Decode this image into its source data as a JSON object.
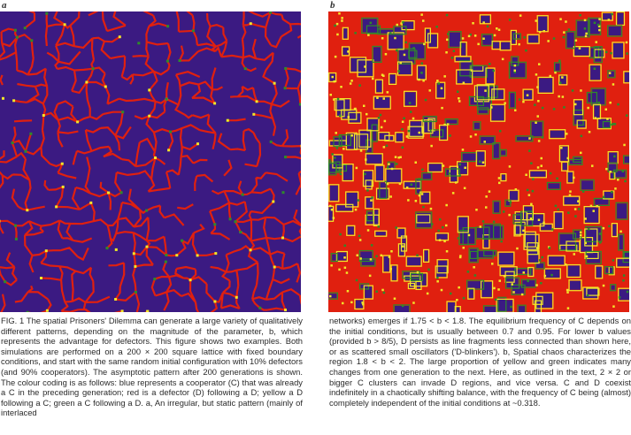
{
  "panels": {
    "a": {
      "label": "a",
      "name": "static pattern (1.75 < b < 1.8)"
    },
    "b": {
      "label": "b",
      "name": "spatial chaos (1.8 < b < 2)"
    }
  },
  "colors": {
    "cooperator_after_cooperator": "#3b1a82",
    "defector_after_defector": "#e0200f",
    "defector_after_cooperator": "#f2e62a",
    "cooperator_after_defector": "#2f8a2a"
  },
  "caption": {
    "left": "FIG. 1 The spatial Prisoners' Dilemma can generate a large variety of qualitatively different patterns, depending on the magnitude of the parameter, b, which represents the advantage for defectors. This figure shows two examples. Both simulations are performed on a 200 × 200 square lattice with fixed boundary conditions, and start with the same random initial configuration with 10% defectors (and 90% cooperators). The asymptotic pattern after 200 generations is shown. The colour coding is as follows: blue represents a cooperator (C) that was already a C in the preceding generation; red is a defector (D) following a D; yellow a D following a C; green a C following a D. a, An irregular, but static pattern (mainly of interlaced",
    "right": "networks) emerges if 1.75 < b < 1.8. The equilibrium frequency of C depends on the initial conditions, but is usually between 0.7 and 0.95. For lower b values (provided b > 8/5), D persists as line fragments less connected than shown here, or as scattered small oscillators ('D-blinkers'). b, Spatial chaos characterizes the region 1.8 < b < 2. The large proportion of yellow and green indicates many changes from one generation to the next. Here, as outlined in the text, 2 × 2 or bigger C clusters can invade D regions, and vice versa. C and D coexist indefinitely in a chaotically shifting balance, with the frequency of C being (almost) completely independent of the initial conditions at ~0.318."
  }
}
